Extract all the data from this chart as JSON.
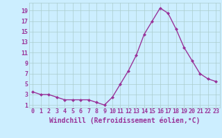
{
  "x": [
    0,
    1,
    2,
    3,
    4,
    5,
    6,
    7,
    8,
    9,
    10,
    11,
    12,
    13,
    14,
    15,
    16,
    17,
    18,
    19,
    20,
    21,
    22,
    23
  ],
  "y": [
    3.5,
    3.0,
    3.0,
    2.5,
    2.0,
    2.0,
    2.0,
    2.0,
    1.5,
    1.0,
    2.5,
    5.0,
    7.5,
    10.5,
    14.5,
    17.0,
    19.5,
    18.5,
    15.5,
    12.0,
    9.5,
    7.0,
    6.0,
    5.5
  ],
  "line_color": "#993399",
  "marker": "D",
  "marker_size": 2.0,
  "line_width": 1.0,
  "xlabel": "Windchill (Refroidissement éolien,°C)",
  "xlabel_fontsize": 7,
  "xtick_labels": [
    "0",
    "1",
    "2",
    "3",
    "4",
    "5",
    "6",
    "7",
    "8",
    "9",
    "10",
    "11",
    "12",
    "13",
    "14",
    "15",
    "16",
    "17",
    "18",
    "19",
    "20",
    "21",
    "22",
    "23"
  ],
  "ytick_values": [
    1,
    3,
    5,
    7,
    9,
    11,
    13,
    15,
    17,
    19
  ],
  "ytick_labels": [
    "1",
    "3",
    "5",
    "7",
    "9",
    "11",
    "13",
    "15",
    "17",
    "19"
  ],
  "ylim": [
    0.5,
    20.5
  ],
  "xlim": [
    -0.5,
    23.5
  ],
  "background_color": "#cceeff",
  "grid_color": "#aacccc",
  "line_color_spine": "#aacccc",
  "tick_color": "#993399",
  "tick_fontsize": 6.0
}
